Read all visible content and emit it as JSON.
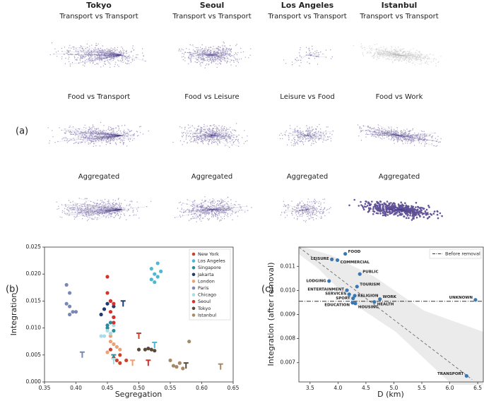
{
  "panel_a": {
    "label": "(a)",
    "cities": [
      "Tokyo",
      "Seoul",
      "Los Angeles",
      "Istanbul"
    ],
    "rows": [
      [
        "Transport vs Transport",
        "Transport vs Transport",
        "Transport vs Transport",
        "Transport vs Transport"
      ],
      [
        "Food vs Transport",
        "Food vs Leisure",
        "Leisure vs Food",
        "Food vs Work"
      ],
      [
        "Aggregated",
        "Aggregated",
        "Aggregated",
        "Aggregated"
      ]
    ]
  },
  "chart_data": [
    {
      "type": "scatter",
      "panel_label": "(b)",
      "x_label": "Segregation",
      "y_label": "Integration",
      "xlim": [
        0.35,
        0.65
      ],
      "ylim": [
        0,
        0.025
      ],
      "xticks": [
        {
          "value": 0.35,
          "label": "0.35"
        },
        {
          "value": 0.4,
          "label": "0.40"
        },
        {
          "value": 0.45,
          "label": "0.45"
        },
        {
          "value": 0.5,
          "label": "0.50"
        },
        {
          "value": 0.55,
          "label": "0.55"
        },
        {
          "value": 0.6,
          "label": "0.60"
        },
        {
          "value": 0.65,
          "label": "0.65"
        }
      ],
      "yticks": [
        {
          "value": 0,
          "label": "0.000"
        },
        {
          "value": 0.005,
          "label": "0.005"
        },
        {
          "value": 0.01,
          "label": "0.010"
        },
        {
          "value": 0.015,
          "label": "0.015"
        },
        {
          "value": 0.02,
          "label": "0.020"
        },
        {
          "value": 0.025,
          "label": "0.025"
        }
      ],
      "legend": "upper right",
      "series": [
        {
          "name": "New York",
          "color": "#c8432b",
          "x": [
            0.46,
            0.465,
            0.47,
            0.48,
            0.47,
            0.455
          ],
          "values": [
            0.0045,
            0.004,
            0.0035,
            0.004,
            0.005,
            0.006
          ],
          "transport_x": 0.5,
          "transport_y": 0.0085
        },
        {
          "name": "Los Angeles",
          "color": "#4fb6d3",
          "x": [
            0.52,
            0.525,
            0.53,
            0.52,
            0.535,
            0.53,
            0.525
          ],
          "values": [
            0.021,
            0.02,
            0.0195,
            0.019,
            0.0205,
            0.022,
            0.0185
          ],
          "transport_x": 0.525,
          "transport_y": 0.0068
        },
        {
          "name": "Singapore",
          "color": "#2b8c9e",
          "x": [
            0.45,
            0.455,
            0.46,
            0.45,
            0.46
          ],
          "values": [
            0.01,
            0.011,
            0.0095,
            0.0105,
            0.012
          ],
          "transport_x": 0.46,
          "transport_y": 0.0045
        },
        {
          "name": "Jakarta",
          "color": "#1f3b73",
          "x": [
            0.445,
            0.45,
            0.455,
            0.44,
            0.46
          ],
          "values": [
            0.0135,
            0.0145,
            0.015,
            0.0125,
            0.014
          ],
          "transport_x": 0.475,
          "transport_y": 0.0145
        },
        {
          "name": "London",
          "color": "#f0a070",
          "x": [
            0.455,
            0.46,
            0.465,
            0.45,
            0.47,
            0.455
          ],
          "values": [
            0.0075,
            0.007,
            0.0065,
            0.0055,
            0.006,
            0.0085
          ],
          "transport_x": 0.49,
          "transport_y": 0.0035
        },
        {
          "name": "Paris",
          "color": "#7a87b5",
          "x": [
            0.385,
            0.39,
            0.385,
            0.395,
            0.39,
            0.4,
            0.39
          ],
          "values": [
            0.018,
            0.0165,
            0.0145,
            0.013,
            0.0125,
            0.013,
            0.014
          ],
          "transport_x": 0.41,
          "transport_y": 0.005
        },
        {
          "name": "Chicago",
          "color": "#a8dde6",
          "x": [
            0.45,
            0.455,
            0.46,
            0.445,
            0.44
          ],
          "values": [
            0.0095,
            0.009,
            0.0105,
            0.0085,
            0.0085
          ],
          "transport_x": 0.46,
          "transport_y": 0.0038
        },
        {
          "name": "Seoul",
          "color": "#d6312b",
          "x": [
            0.45,
            0.455,
            0.46,
            0.455,
            0.46,
            0.45,
            0.46
          ],
          "values": [
            0.0195,
            0.015,
            0.0145,
            0.013,
            0.012,
            0.0165,
            0.011
          ],
          "transport_x": 0.515,
          "transport_y": 0.0035
        },
        {
          "name": "Tokyo",
          "color": "#5a4a3a",
          "x": [
            0.51,
            0.515,
            0.52,
            0.525,
            0.5
          ],
          "values": [
            0.006,
            0.0062,
            0.006,
            0.0058,
            0.006
          ],
          "transport_x": 0.575,
          "transport_y": 0.003
        },
        {
          "name": "Istanbul",
          "color": "#a68a64",
          "x": [
            0.55,
            0.555,
            0.56,
            0.565,
            0.58,
            0.57
          ],
          "values": [
            0.004,
            0.003,
            0.0028,
            0.0035,
            0.0075,
            0.0025
          ],
          "transport_x": 0.63,
          "transport_y": 0.0028
        }
      ]
    },
    {
      "type": "scatter",
      "panel_label": "(c)",
      "x_label": "D (km)",
      "y_label": "Integration (after removal)",
      "xlim": [
        3.3,
        6.6
      ],
      "ylim": [
        0.0062,
        0.0118
      ],
      "xticks": [
        3.5,
        {
          "value": 4,
          "label": "4.0"
        },
        4.5,
        {
          "value": 5,
          "label": "5.0"
        },
        5.5,
        {
          "value": 6,
          "label": "6.0"
        },
        6.5
      ],
      "yticks": [
        0.007,
        0.008,
        0.009,
        {
          "value": 0.01,
          "label": "0.010"
        },
        0.011
      ],
      "color": "#3a78b5",
      "categories": [
        "FOOD",
        "LEISURE",
        "COMMERCIAL",
        "PUBLIC",
        "LODGING",
        "TOURISM",
        "ENTERTAINMENT",
        "SERVICES",
        "RELIGION",
        "WORK",
        "SPORT",
        "EDUCATION",
        "HEALTH",
        "HOUSING",
        "UNKNOWN",
        "TRANSPORT"
      ],
      "x": [
        4.13,
        3.89,
        3.99,
        4.39,
        3.84,
        4.34,
        4.16,
        4.2,
        4.3,
        4.75,
        4.27,
        4.26,
        4.65,
        4.31,
        6.46,
        6.3
      ],
      "values": [
        0.01152,
        0.01129,
        0.01126,
        0.01068,
        0.01039,
        0.01016,
        0.01001,
        0.00984,
        0.00978,
        0.00964,
        0.00967,
        0.00949,
        0.00952,
        0.00946,
        0.00961,
        0.00645
      ],
      "fit_line": {
        "x": [
          3.3,
          6.4
        ],
        "y": [
          0.0118,
          0.0063
        ]
      },
      "reference_line": {
        "name": "Before removal",
        "value": 0.00955
      },
      "legend": "upper right"
    }
  ]
}
